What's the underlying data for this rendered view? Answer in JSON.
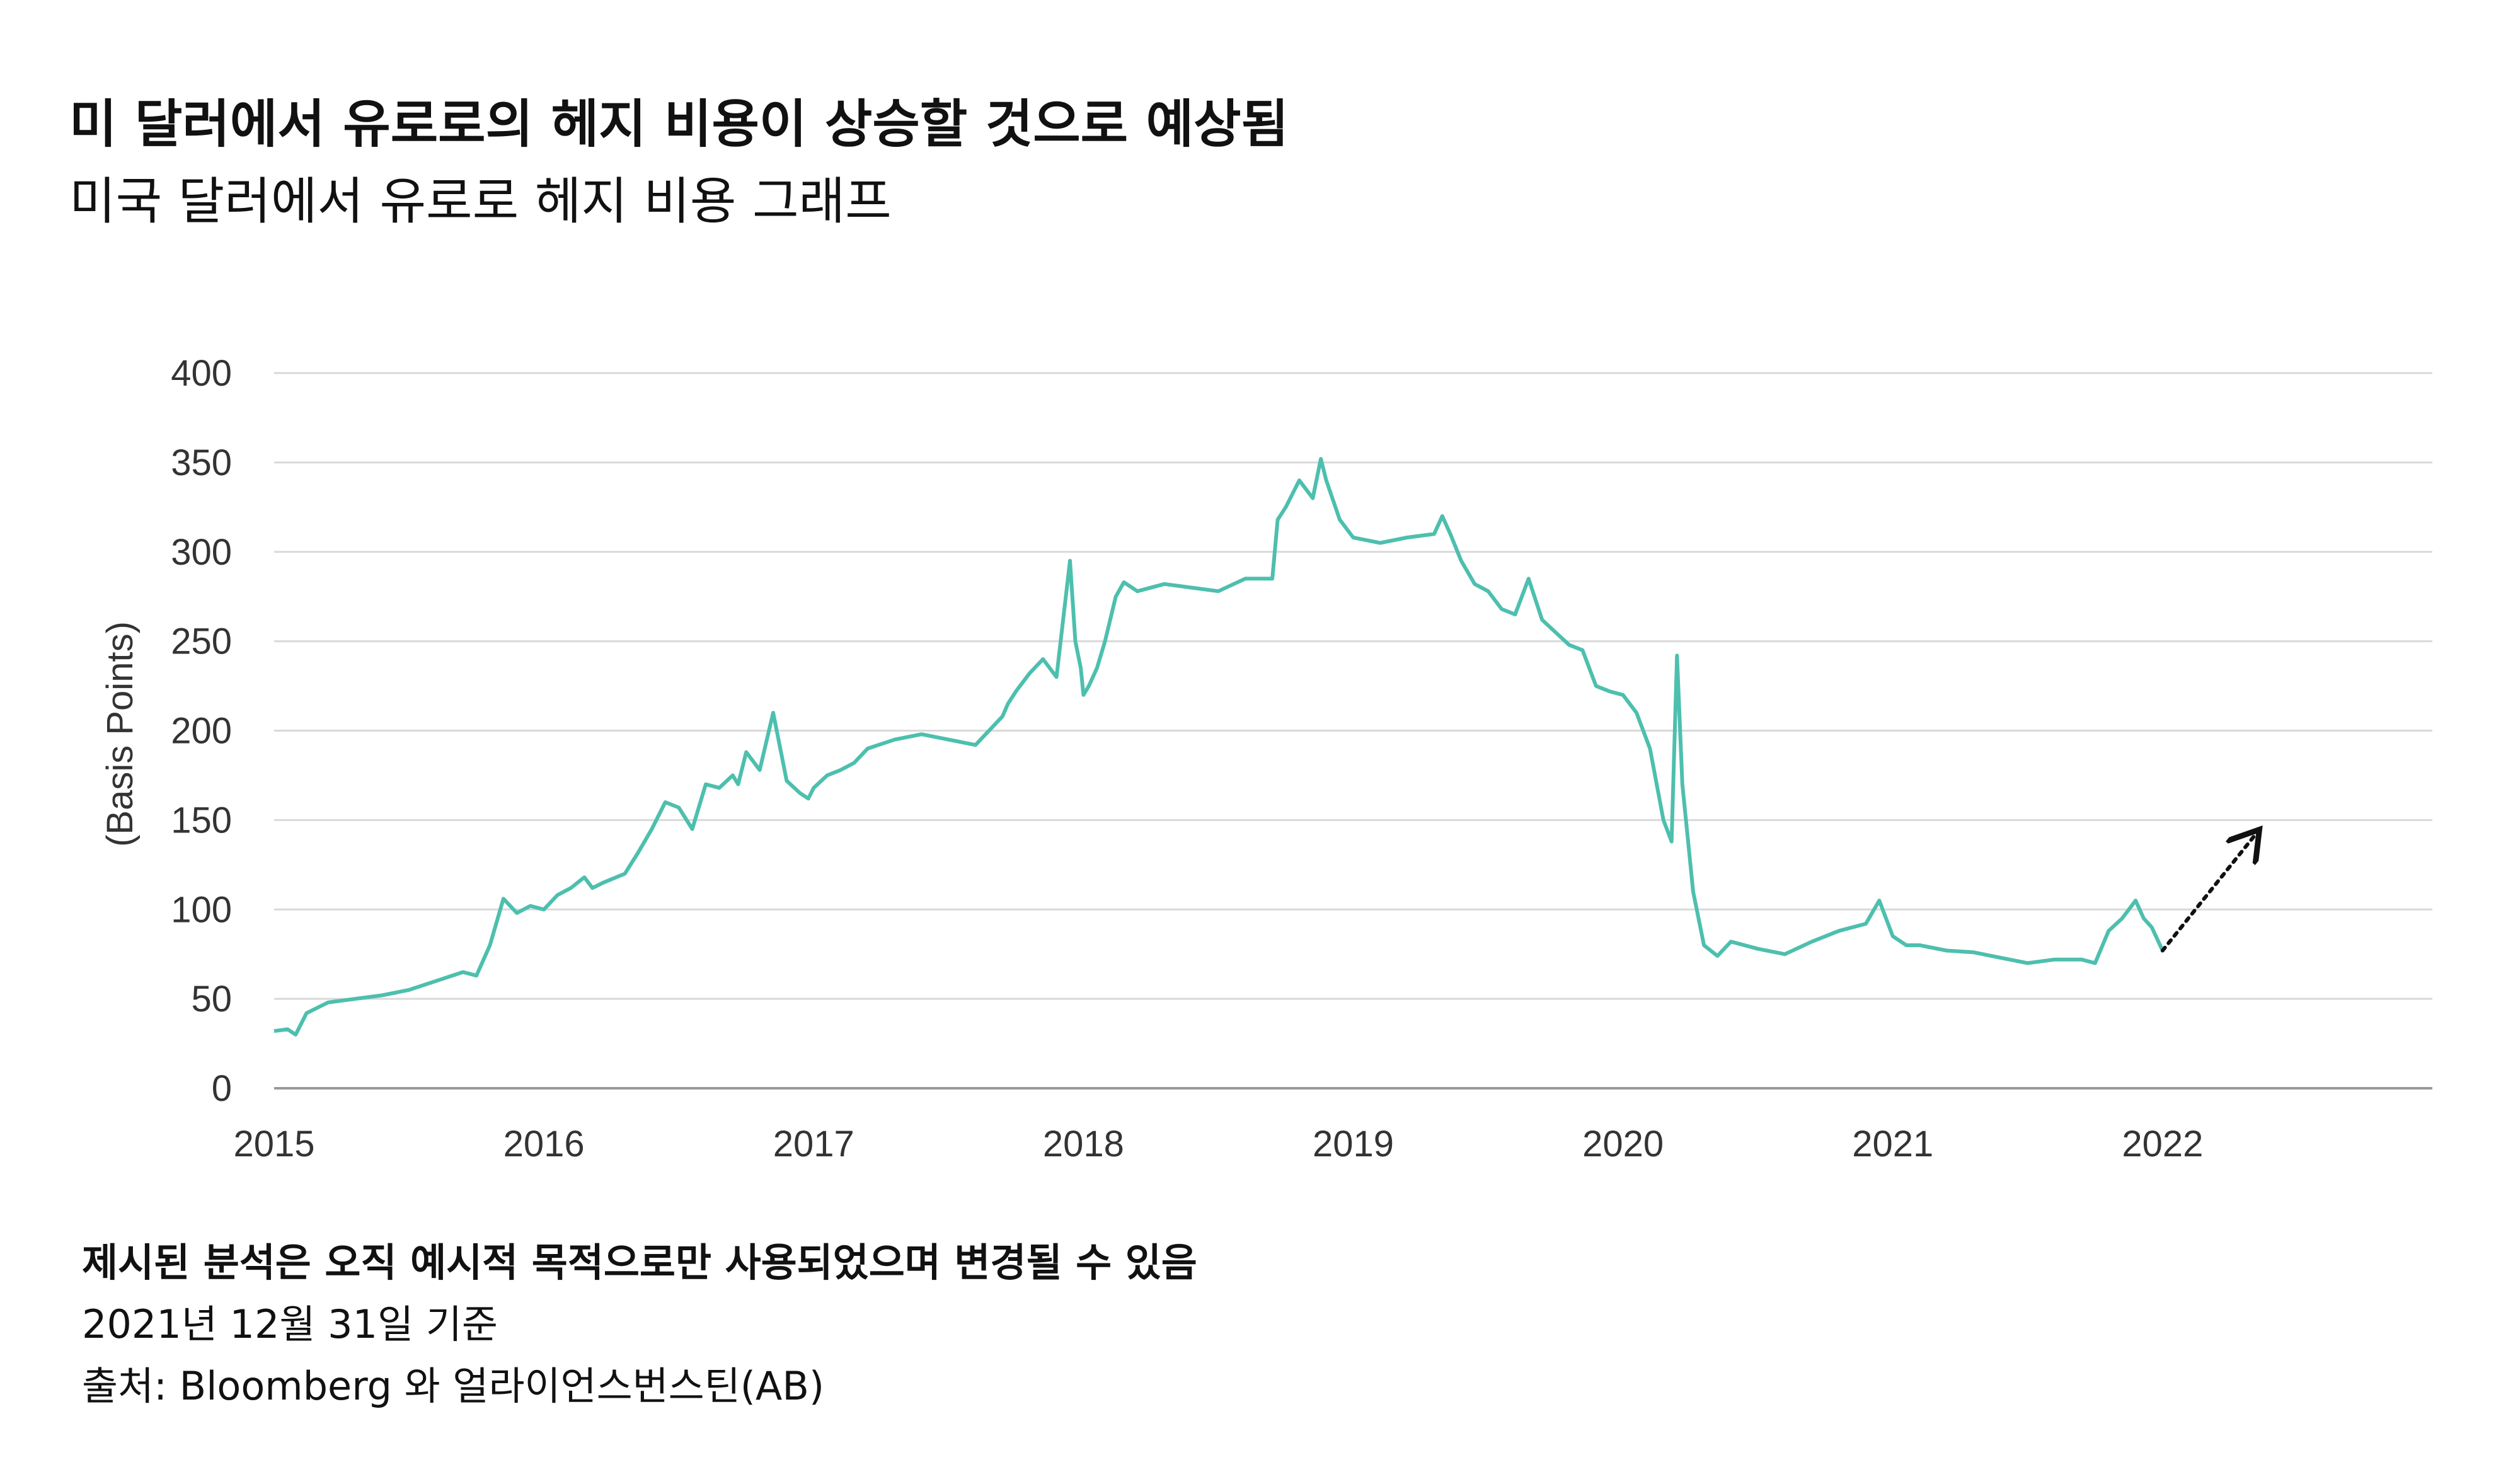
{
  "header": {
    "title": "미 달러에서 유로로의 헤지 비용이 상승할 것으로 예상됨",
    "subtitle": "미국 달러에서 유로로 헤지 비용 그래프"
  },
  "footer": {
    "disclaimer": "제시된 분석은 오직 예시적 목적으로만 사용되었으며 변경될 수 있음",
    "date_note": "2021년 12월 31일 기준",
    "source": "출처: Bloomberg 와 얼라이언스번스틴(AB)"
  },
  "colors": {
    "line": "#4dbfae",
    "grid": "#d9d9d9",
    "axis": "#999999",
    "text": "#333333",
    "arrow": "#111111"
  },
  "chart_data": {
    "type": "line",
    "ylabel": "(Basis Points)",
    "xlabel": "",
    "ylim": [
      0,
      400
    ],
    "yticks": [
      0,
      50,
      100,
      150,
      200,
      250,
      300,
      350,
      400
    ],
    "xlim": [
      2015,
      2023.0
    ],
    "xticks": [
      2015,
      2016,
      2017,
      2018,
      2019,
      2020,
      2021,
      2022
    ],
    "grid": "horizontal",
    "series": [
      {
        "x": [
          2015.0,
          2015.05,
          2015.08,
          2015.12,
          2015.2,
          2015.3,
          2015.4,
          2015.5,
          2015.6,
          2015.7,
          2015.75,
          2015.8,
          2015.85,
          2015.9,
          2015.95,
          2016.0,
          2016.05,
          2016.1,
          2016.15,
          2016.18,
          2016.22,
          2016.3,
          2016.35,
          2016.4,
          2016.45,
          2016.5,
          2016.55,
          2016.6,
          2016.65,
          2016.7,
          2016.72,
          2016.75,
          2016.8,
          2016.85,
          2016.9,
          2016.95,
          2016.98,
          2017.0,
          2017.05,
          2017.1,
          2017.15,
          2017.2,
          2017.3,
          2017.4,
          2017.5,
          2017.6,
          2017.7,
          2017.72,
          2017.75,
          2017.8,
          2017.85,
          2017.9,
          2017.95,
          2017.97,
          2017.99,
          2018.0,
          2018.02,
          2018.05,
          2018.08,
          2018.12,
          2018.15,
          2018.2,
          2018.3,
          2018.4,
          2018.5,
          2018.6,
          2018.7,
          2018.72,
          2018.75,
          2018.8,
          2018.85,
          2018.88,
          2018.9,
          2018.95,
          2019.0,
          2019.1,
          2019.2,
          2019.3,
          2019.33,
          2019.36,
          2019.4,
          2019.45,
          2019.5,
          2019.55,
          2019.6,
          2019.65,
          2019.7,
          2019.75,
          2019.8,
          2019.85,
          2019.9,
          2019.95,
          2020.0,
          2020.05,
          2020.1,
          2020.15,
          2020.18,
          2020.2,
          2020.22,
          2020.24,
          2020.26,
          2020.28,
          2020.3,
          2020.35,
          2020.4,
          2020.5,
          2020.6,
          2020.7,
          2020.8,
          2020.9,
          2020.95,
          2021.0,
          2021.05,
          2021.1,
          2021.2,
          2021.3,
          2021.4,
          2021.5,
          2021.6,
          2021.7,
          2021.75,
          2021.8,
          2021.85,
          2021.9,
          2021.93,
          2021.96,
          2022.0
        ],
        "values": [
          32,
          33,
          30,
          42,
          48,
          50,
          52,
          55,
          60,
          65,
          63,
          80,
          106,
          98,
          102,
          100,
          108,
          112,
          118,
          112,
          115,
          120,
          132,
          145,
          160,
          157,
          145,
          170,
          168,
          175,
          170,
          188,
          178,
          210,
          172,
          165,
          162,
          168,
          175,
          178,
          182,
          190,
          195,
          198,
          195,
          192,
          208,
          215,
          222,
          232,
          240,
          230,
          295,
          250,
          235,
          220,
          225,
          235,
          250,
          275,
          283,
          278,
          282,
          280,
          278,
          285,
          285,
          318,
          325,
          340,
          330,
          352,
          340,
          318,
          308,
          305,
          308,
          310,
          320,
          310,
          295,
          282,
          278,
          268,
          265,
          285,
          262,
          255,
          248,
          245,
          225,
          222,
          220,
          210,
          190,
          150,
          138,
          242,
          170,
          140,
          110,
          95,
          80,
          74,
          82,
          78,
          75,
          82,
          88,
          92,
          105,
          85,
          80,
          80,
          77,
          76,
          73,
          70,
          72,
          72,
          70,
          88,
          95,
          105,
          95,
          90,
          77
        ]
      }
    ],
    "annotations": [
      {
        "type": "dotted-arrow",
        "from": [
          2022.0,
          77
        ],
        "to": [
          2022.35,
          143
        ]
      }
    ]
  }
}
